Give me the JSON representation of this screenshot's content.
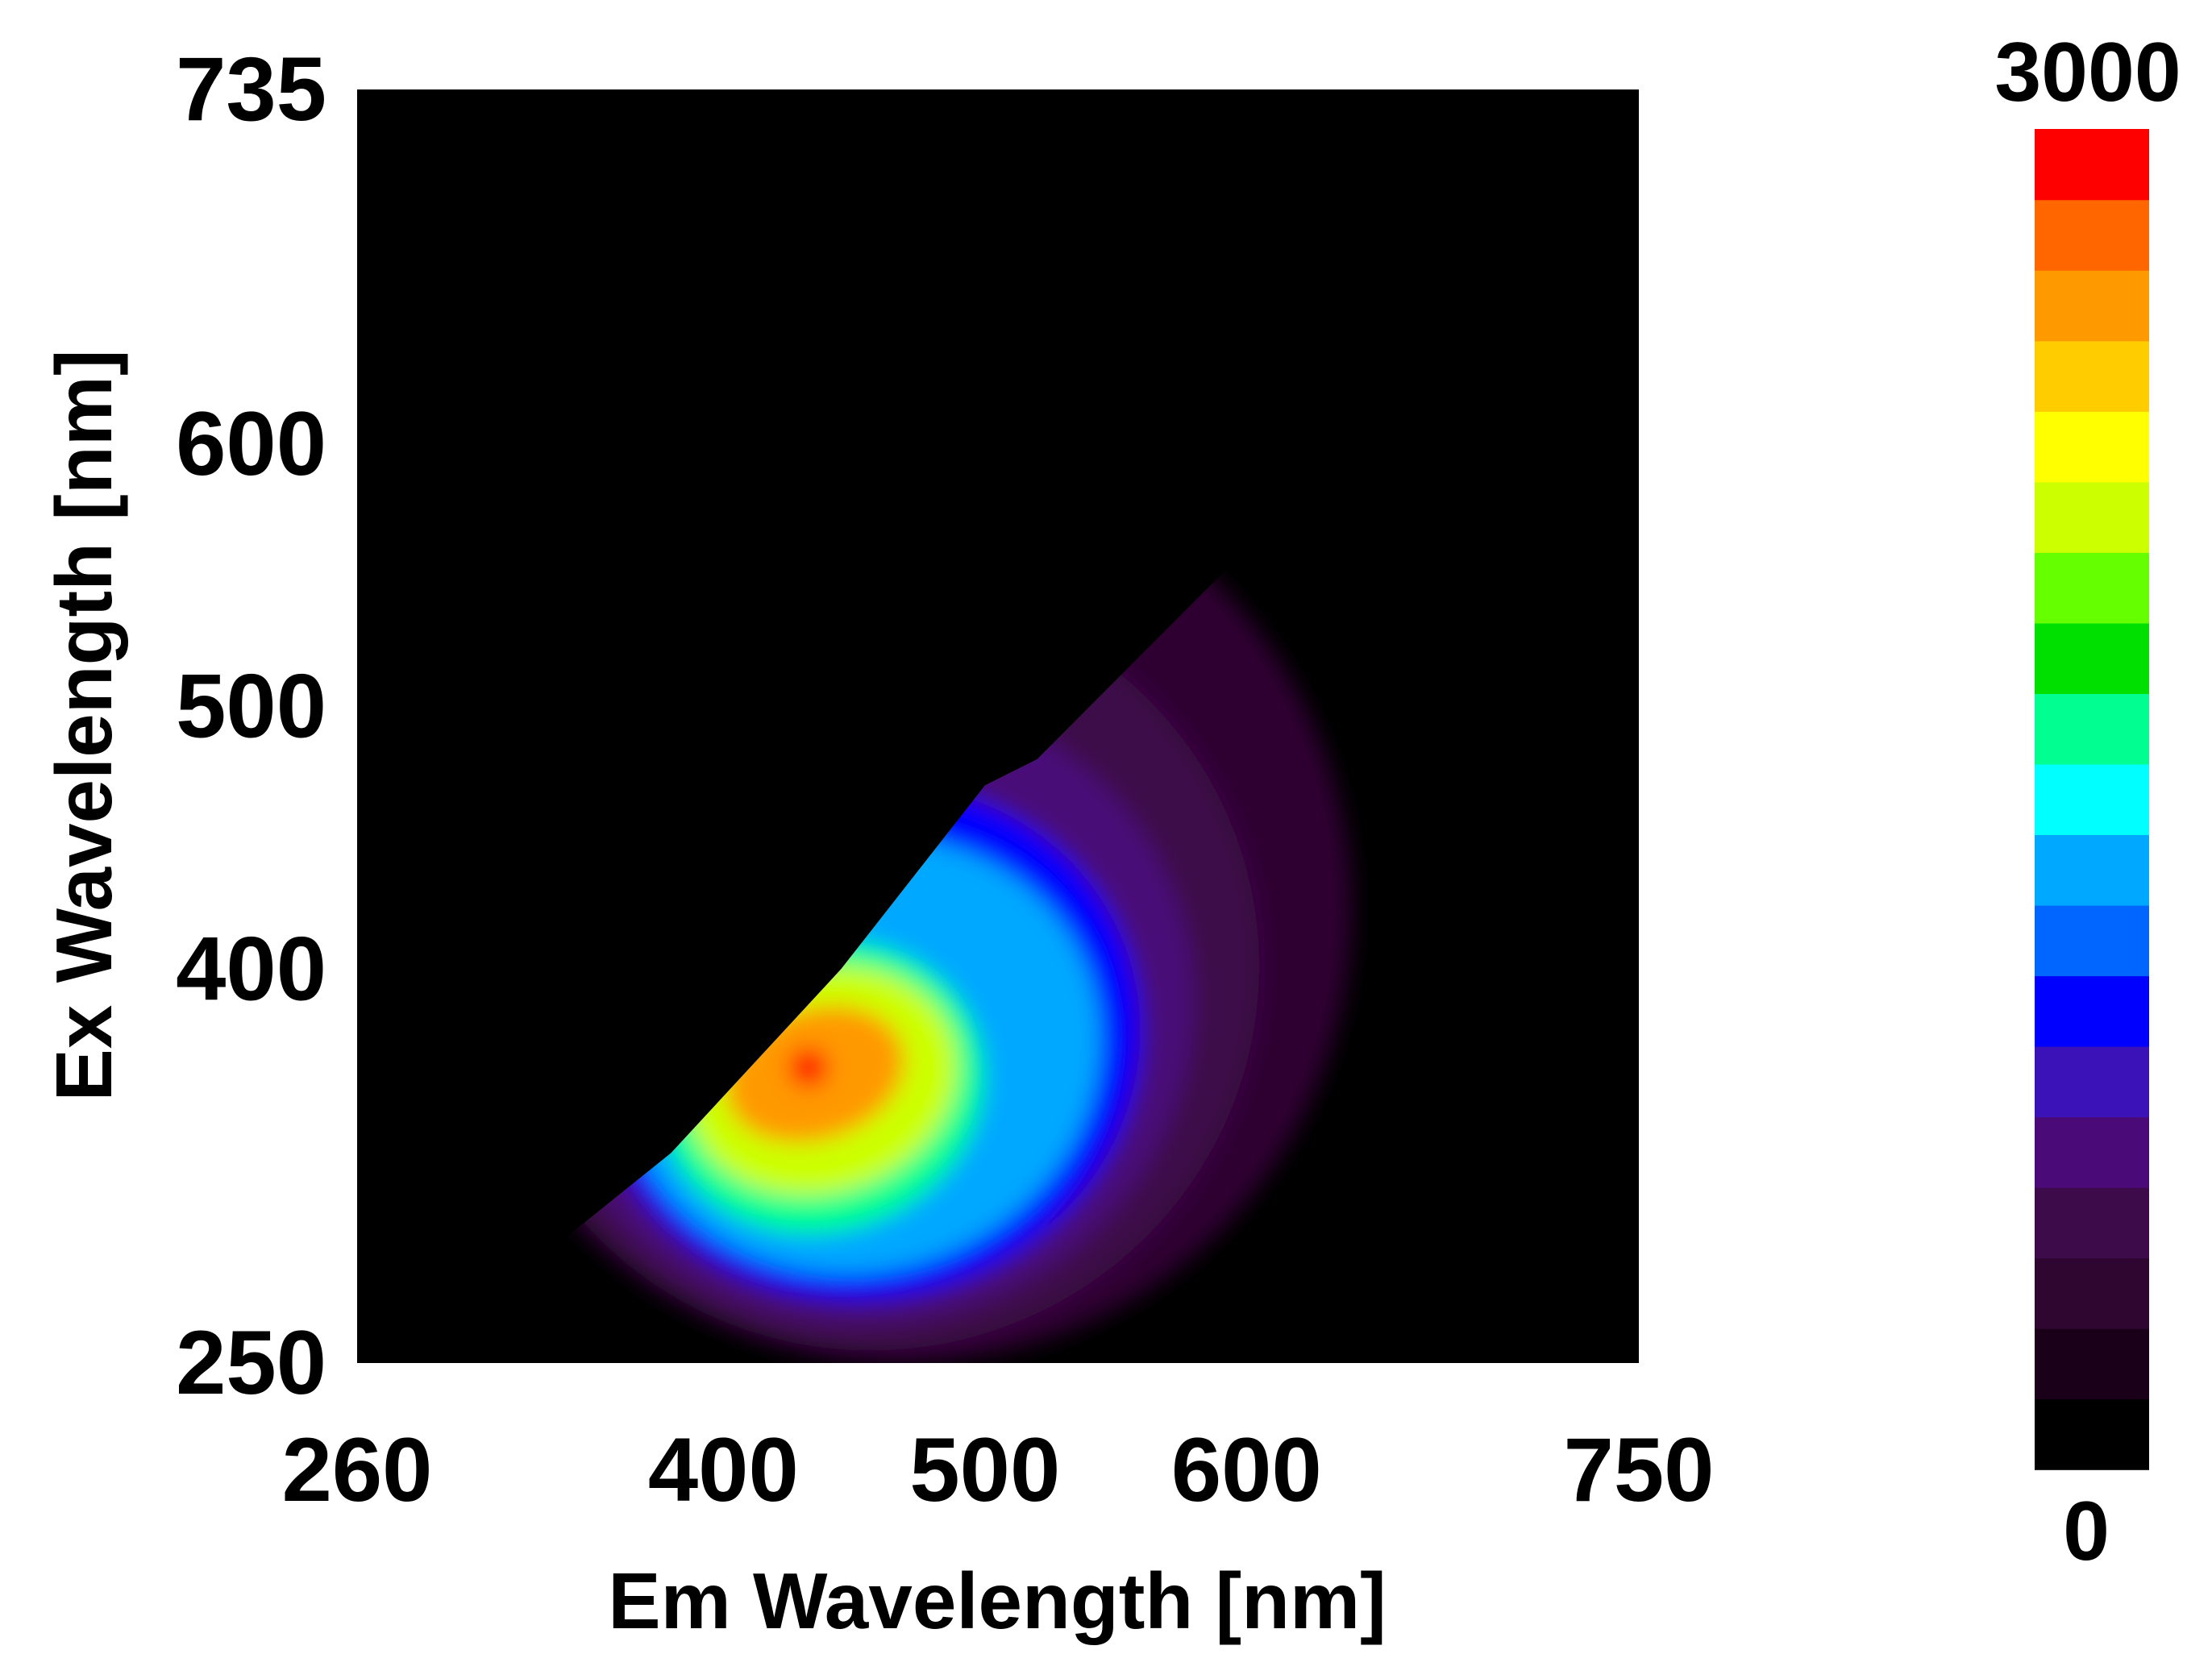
{
  "chart_data": {
    "type": "heatmap",
    "title": "",
    "xlabel": "Em Wavelength [nm]",
    "ylabel": "Ex Wavelength [nm]",
    "xlim": [
      260,
      750
    ],
    "ylim": [
      250,
      735
    ],
    "x_ticks": [
      "260",
      "400",
      "500",
      "600",
      "750"
    ],
    "y_ticks": [
      "250",
      "400",
      "500",
      "600",
      "735"
    ],
    "colorbar": {
      "min_label": "0",
      "max_label": "3000",
      "min": 0,
      "max": 3000,
      "colors": [
        "#000000",
        "#1a0018",
        "#2e0630",
        "#3d0a4a",
        "#4a0a78",
        "#3a12b8",
        "#0000ff",
        "#0066ff",
        "#00a8ff",
        "#00ffff",
        "#00ff90",
        "#00e000",
        "#66ff00",
        "#ccff00",
        "#ffff00",
        "#ffcc00",
        "#ff9900",
        "#ff6600",
        "#ff0000"
      ]
    },
    "background_color": "#000000",
    "peak": {
      "em": 432,
      "ex": 362,
      "value": 3000
    },
    "contour_levels": [
      {
        "level": 200,
        "color": "#2e0630",
        "em_range": [
          295,
          640
        ],
        "ex_range": [
          250,
          598
        ]
      },
      {
        "level": 400,
        "color": "#3d0a4a",
        "em_range": [
          310,
          605
        ],
        "ex_range": [
          255,
          545
        ]
      },
      {
        "level": 700,
        "color": "#4a0a78",
        "em_range": [
          330,
          580
        ],
        "ex_range": [
          265,
          505
        ]
      },
      {
        "level": 1000,
        "color": "#0000ff",
        "em_range": [
          350,
          560
        ],
        "ex_range": [
          275,
          470
        ]
      },
      {
        "level": 1400,
        "color": "#00a8ff",
        "em_range": [
          360,
          545
        ],
        "ex_range": [
          285,
          450
        ]
      },
      {
        "level": 1800,
        "color": "#00ff90",
        "em_range": [
          375,
          500
        ],
        "ex_range": [
          300,
          410
        ]
      },
      {
        "level": 2200,
        "color": "#ccff00",
        "em_range": [
          385,
          490
        ],
        "ex_range": [
          315,
          400
        ]
      },
      {
        "level": 2600,
        "color": "#ff9900",
        "em_range": [
          400,
          470
        ],
        "ex_range": [
          335,
          385
        ]
      },
      {
        "level": 3000,
        "color": "#ff0000",
        "em_range": [
          425,
          440
        ],
        "ex_range": [
          355,
          370
        ]
      }
    ]
  }
}
